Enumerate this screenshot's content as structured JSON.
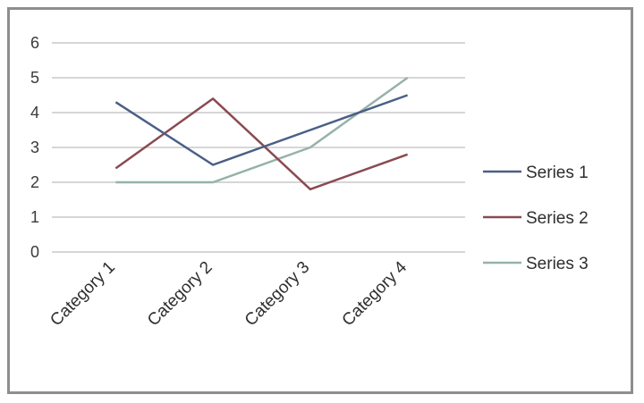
{
  "chart_data": {
    "type": "line",
    "title": "",
    "xlabel": "",
    "ylabel": "",
    "categories": [
      "Category 1",
      "Category 2",
      "Category 3",
      "Category 4"
    ],
    "ylim": [
      0,
      6
    ],
    "yticks": [
      "0",
      "1",
      "2",
      "3",
      "4",
      "5",
      "6"
    ],
    "grid": true,
    "legend_position": "right",
    "series": [
      {
        "name": "Series 1",
        "values": [
          4.3,
          2.5,
          3.5,
          4.5
        ],
        "color": "#4a5f86"
      },
      {
        "name": "Series 2",
        "values": [
          2.4,
          4.4,
          1.8,
          2.8
        ],
        "color": "#8a4a52"
      },
      {
        "name": "Series 3",
        "values": [
          2.0,
          2.0,
          3.0,
          5.0
        ],
        "color": "#96b2a8"
      }
    ]
  }
}
